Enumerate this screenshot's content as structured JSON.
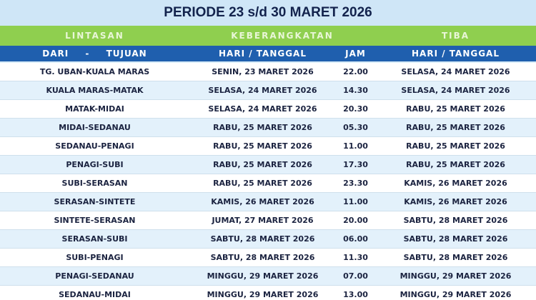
{
  "header": {
    "title": "PERIODE 23 s/d 30 MARET 2026"
  },
  "table": {
    "groups": [
      "LINTASAN",
      "KEBERANGKATAN",
      "TIBA"
    ],
    "columns": [
      "DARI - TUJUAN",
      "HARI / TANGGAL",
      "JAM",
      "HARI / TANGGAL"
    ],
    "rows": [
      [
        "TG. UBAN-KUALA MARAS",
        "SENIN, 23 MARET 2026",
        "22.00",
        "SELASA, 24 MARET 2026"
      ],
      [
        "KUALA MARAS-MATAK",
        "SELASA, 24 MARET 2026",
        "14.30",
        "SELASA, 24 MARET 2026"
      ],
      [
        "MATAK-MIDAI",
        "SELASA, 24 MARET 2026",
        "20.30",
        "RABU, 25 MARET 2026"
      ],
      [
        "MIDAI-SEDANAU",
        "RABU, 25 MARET 2026",
        "05.30",
        "RABU, 25 MARET 2026"
      ],
      [
        "SEDANAU-PENAGI",
        "RABU, 25 MARET 2026",
        "11.00",
        "RABU, 25 MARET 2026"
      ],
      [
        "PENAGI-SUBI",
        "RABU, 25 MARET 2026",
        "17.30",
        "RABU, 25 MARET 2026"
      ],
      [
        "SUBI-SERASAN",
        "RABU, 25 MARET 2026",
        "23.30",
        "KAMIS, 26 MARET 2026"
      ],
      [
        "SERASAN-SINTETE",
        "KAMIS, 26 MARET 2026",
        "11.00",
        "KAMIS, 26 MARET 2026"
      ],
      [
        "SINTETE-SERASAN",
        "JUMAT, 27 MARET 2026",
        "20.00",
        "SABTU, 28 MARET 2026"
      ],
      [
        "SERASAN-SUBI",
        "SABTU, 28 MARET 2026",
        "06.00",
        "SABTU, 28 MARET 2026"
      ],
      [
        "SUBI-PENAGI",
        "SABTU, 28 MARET 2026",
        "11.30",
        "SABTU, 28 MARET 2026"
      ],
      [
        "PENAGI-SEDANAU",
        "MINGGU, 29 MARET 2026",
        "07.00",
        "MINGGU, 29 MARET 2026"
      ],
      [
        "SEDANAU-MIDAI",
        "MINGGU, 29 MARET 2026",
        "13.00",
        "MINGGU, 29 MARET 2026"
      ]
    ]
  }
}
